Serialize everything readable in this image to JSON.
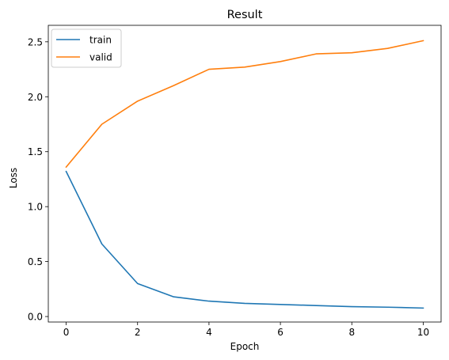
{
  "chart_data": {
    "type": "line",
    "title": "Result",
    "xlabel": "Epoch",
    "ylabel": "Loss",
    "xlim": [
      -0.5,
      10.5
    ],
    "ylim": [
      -0.05,
      2.65
    ],
    "xticks": [
      0,
      2,
      4,
      6,
      8,
      10
    ],
    "yticks": [
      0.0,
      0.5,
      1.0,
      1.5,
      2.0,
      2.5
    ],
    "xtick_labels": [
      "0",
      "2",
      "4",
      "6",
      "8",
      "10"
    ],
    "ytick_labels": [
      "0.0",
      "0.5",
      "1.0",
      "1.5",
      "2.0",
      "2.5"
    ],
    "grid": false,
    "legend_position": "upper-left",
    "x": [
      0,
      1,
      2,
      3,
      4,
      5,
      6,
      7,
      8,
      9,
      10
    ],
    "series": [
      {
        "name": "train",
        "color": "#1f77b4",
        "values": [
          1.32,
          0.66,
          0.3,
          0.18,
          0.14,
          0.12,
          0.11,
          0.1,
          0.09,
          0.085,
          0.077
        ]
      },
      {
        "name": "valid",
        "color": "#ff7f0e",
        "values": [
          1.36,
          1.75,
          1.96,
          2.1,
          2.25,
          2.27,
          2.32,
          2.39,
          2.4,
          2.44,
          2.51
        ]
      }
    ]
  }
}
